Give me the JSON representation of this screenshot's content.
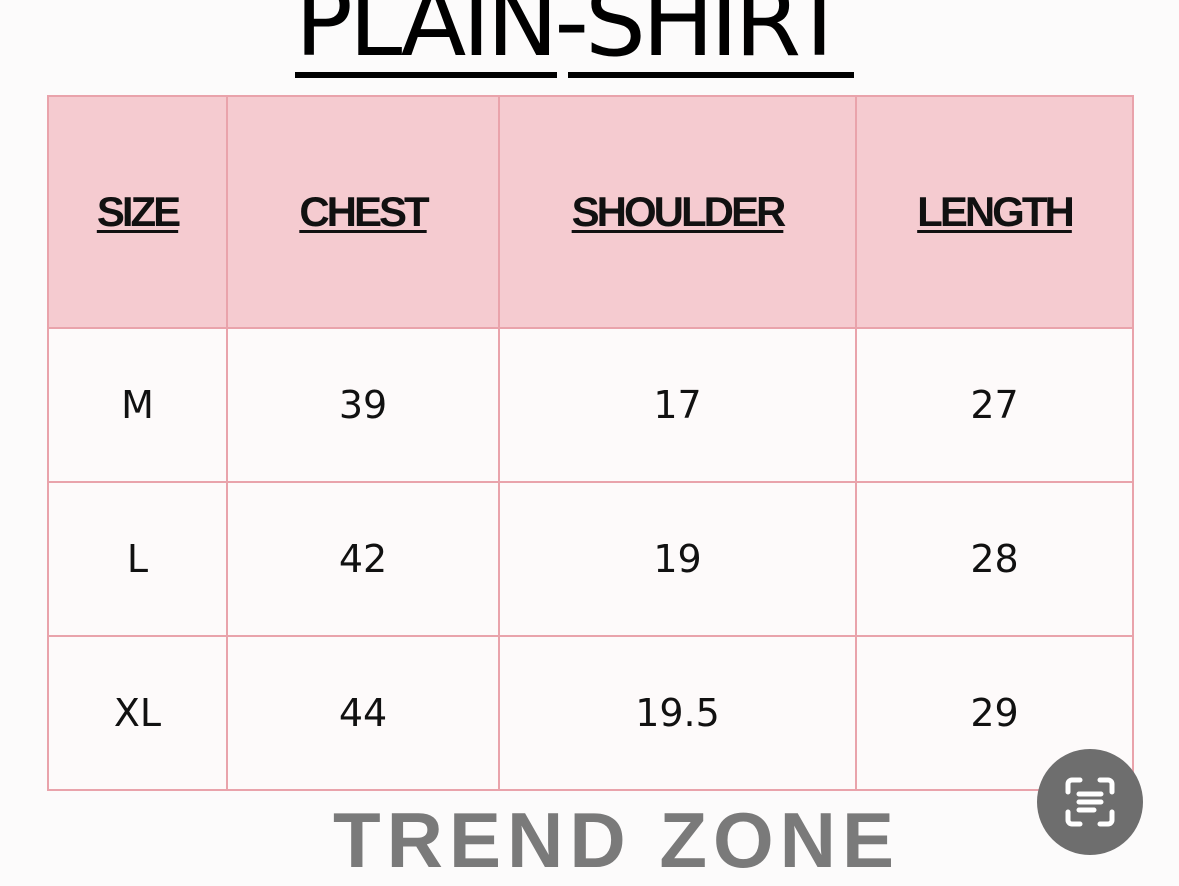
{
  "title": "PLAIN-SHIRT",
  "table": {
    "headers": [
      "SIZE",
      "CHEST",
      "SHOULDER",
      "LENGTH"
    ],
    "rows": [
      [
        "M",
        "39",
        "17",
        "27"
      ],
      [
        "L",
        "42",
        "19",
        "28"
      ],
      [
        "XL",
        "44",
        "19.5",
        "29"
      ]
    ]
  },
  "brand": "TREND ZONE",
  "colors": {
    "header_bg": "#f5cbd0",
    "border": "#e9a3ab",
    "brand_text": "#7a7a7a"
  },
  "scan_button_icon": "text-scan-icon"
}
